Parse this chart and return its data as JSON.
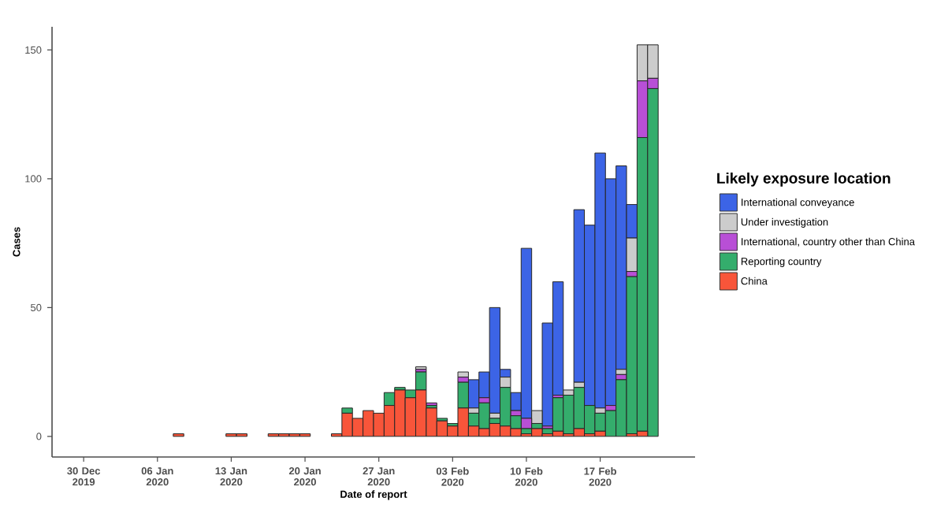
{
  "chart_data": {
    "type": "bar",
    "stacked": true,
    "xlabel": "Date of report",
    "ylabel": "Cases",
    "legend_title": "Likely exposure location",
    "legend": "right",
    "x": [
      "2019-12-31",
      "2020-01-01",
      "2020-01-02",
      "2020-01-03",
      "2020-01-04",
      "2020-01-05",
      "2020-01-06",
      "2020-01-07",
      "2020-01-08",
      "2020-01-09",
      "2020-01-10",
      "2020-01-11",
      "2020-01-12",
      "2020-01-13",
      "2020-01-14",
      "2020-01-15",
      "2020-01-16",
      "2020-01-17",
      "2020-01-18",
      "2020-01-19",
      "2020-01-20",
      "2020-01-21",
      "2020-01-22",
      "2020-01-23",
      "2020-01-24",
      "2020-01-25",
      "2020-01-26",
      "2020-01-27",
      "2020-01-28",
      "2020-01-29",
      "2020-01-30",
      "2020-01-31",
      "2020-02-01",
      "2020-02-02",
      "2020-02-03",
      "2020-02-04",
      "2020-02-05",
      "2020-02-06",
      "2020-02-07",
      "2020-02-08",
      "2020-02-09",
      "2020-02-10",
      "2020-02-11",
      "2020-02-12",
      "2020-02-13",
      "2020-02-14",
      "2020-02-15",
      "2020-02-16",
      "2020-02-17",
      "2020-02-18",
      "2020-02-19",
      "2020-02-20",
      "2020-02-21",
      "2020-02-22"
    ],
    "series": [
      {
        "name": "China",
        "color": "#f8553a",
        "values": [
          0,
          0,
          0,
          0,
          0,
          0,
          0,
          0,
          1,
          0,
          0,
          0,
          0,
          1,
          1,
          0,
          0,
          1,
          1,
          1,
          1,
          0,
          0,
          1,
          9,
          7,
          10,
          9,
          12,
          18,
          15,
          18,
          11,
          6,
          4,
          11,
          4,
          3,
          5,
          4,
          3,
          1,
          3,
          1,
          2,
          1,
          3,
          1,
          2,
          0,
          0,
          1,
          2,
          0
        ]
      },
      {
        "name": "Reporting country",
        "color": "#34ad6c",
        "values": [
          0,
          0,
          0,
          0,
          0,
          0,
          0,
          0,
          0,
          0,
          0,
          0,
          0,
          0,
          0,
          0,
          0,
          0,
          0,
          0,
          0,
          0,
          0,
          0,
          2,
          0,
          0,
          0,
          5,
          1,
          3,
          7,
          1,
          1,
          1,
          10,
          5,
          10,
          2,
          15,
          5,
          2,
          2,
          2,
          13,
          15,
          16,
          11,
          7,
          10,
          22,
          61,
          114,
          135
        ]
      },
      {
        "name": "International, country other than China",
        "color": "#b84fd6",
        "values": [
          0,
          0,
          0,
          0,
          0,
          0,
          0,
          0,
          0,
          0,
          0,
          0,
          0,
          0,
          0,
          0,
          0,
          0,
          0,
          0,
          0,
          0,
          0,
          0,
          0,
          0,
          0,
          0,
          0,
          0,
          0,
          1,
          1,
          0,
          0,
          2,
          0,
          2,
          0,
          0,
          2,
          4,
          0,
          1,
          1,
          0,
          0,
          0,
          0,
          2,
          2,
          2,
          22,
          4
        ]
      },
      {
        "name": "Under investigation",
        "color": "#cccccc",
        "values": [
          0,
          0,
          0,
          0,
          0,
          0,
          0,
          0,
          0,
          0,
          0,
          0,
          0,
          0,
          0,
          0,
          0,
          0,
          0,
          0,
          0,
          0,
          0,
          0,
          0,
          0,
          0,
          0,
          0,
          0,
          0,
          1,
          0,
          0,
          0,
          2,
          2,
          0,
          2,
          4,
          0,
          0,
          5,
          0,
          0,
          2,
          2,
          0,
          2,
          0,
          2,
          13,
          14,
          13
        ]
      },
      {
        "name": "International conveyance",
        "color": "#3c64e6",
        "values": [
          0,
          0,
          0,
          0,
          0,
          0,
          0,
          0,
          0,
          0,
          0,
          0,
          0,
          0,
          0,
          0,
          0,
          0,
          0,
          0,
          0,
          0,
          0,
          0,
          0,
          0,
          0,
          0,
          0,
          0,
          0,
          0,
          0,
          0,
          0,
          0,
          11,
          10,
          41,
          3,
          7,
          66,
          0,
          40,
          44,
          0,
          67,
          70,
          99,
          88,
          79,
          13,
          0,
          0
        ]
      }
    ],
    "xlim": [
      "2019-12-27",
      "2020-02-26"
    ],
    "ylim": [
      -8,
      159
    ],
    "xticks": [
      {
        "value": "2019-12-30",
        "label": "30 Dec 2019"
      },
      {
        "value": "2020-01-06",
        "label": "06 Jan 2020"
      },
      {
        "value": "2020-01-13",
        "label": "13 Jan 2020"
      },
      {
        "value": "2020-01-20",
        "label": "20 Jan 2020"
      },
      {
        "value": "2020-01-27",
        "label": "27 Jan 2020"
      },
      {
        "value": "2020-02-03",
        "label": "03 Feb 2020"
      },
      {
        "value": "2020-02-10",
        "label": "10 Feb 2020"
      },
      {
        "value": "2020-02-17",
        "label": "17 Feb 2020"
      }
    ],
    "yticks": [
      0,
      50,
      100,
      150
    ]
  }
}
